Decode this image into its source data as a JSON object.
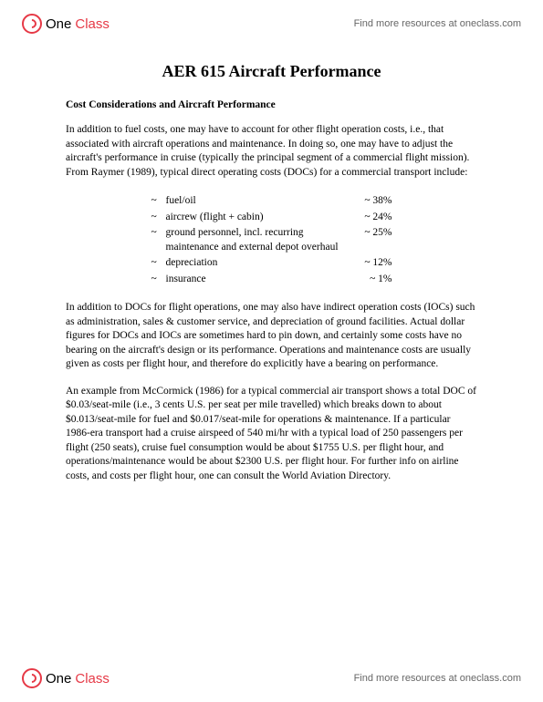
{
  "header": {
    "brand_one": "One",
    "brand_class": "Class",
    "find_more": "Find more resources at oneclass.com"
  },
  "footer": {
    "brand_one": "One",
    "brand_class": "Class",
    "find_more": "Find more resources at oneclass.com"
  },
  "doc": {
    "title": "AER 615 Aircraft Performance",
    "subtitle": "Cost Considerations and Aircraft Performance",
    "para1": "In addition to fuel costs, one may have to account for other flight operation costs, i.e., that associated with aircraft operations and maintenance. In doing so, one may have to adjust the aircraft's performance in cruise (typically the principal segment of a commercial flight mission). From Raymer (1989), typical direct operating costs (DOCs) for a commercial transport include:",
    "costs": [
      {
        "label": "fuel/oil",
        "value": "~ 38%"
      },
      {
        "label": "aircrew (flight + cabin)",
        "value": "~ 24%"
      },
      {
        "label": "ground personnel, incl. recurring maintenance and external depot overhaul",
        "value": "~ 25%"
      },
      {
        "label": "depreciation",
        "value": "~ 12%"
      },
      {
        "label": "insurance",
        "value": "~  1%"
      }
    ],
    "para2": "In addition to DOCs for flight operations, one may also have indirect operation costs (IOCs) such as administration, sales & customer service, and depreciation of ground facilities. Actual dollar figures for DOCs and IOCs are sometimes hard to pin down, and certainly some costs have no bearing on the aircraft's design or its performance. Operations and maintenance costs are usually given as costs per flight hour, and therefore do explicitly have a bearing on performance.",
    "para3": "An example from McCormick (1986) for a typical commercial air transport shows a total DOC of $0.03/seat-mile (i.e., 3 cents U.S. per seat per mile travelled) which breaks down to about $0.013/seat-mile for fuel and $0.017/seat-mile for operations & maintenance. If a particular 1986-era transport had a cruise airspeed of 540 mi/hr with a typical load of 250 passengers per flight (250 seats), cruise fuel consumption would be about $1755 U.S. per flight hour, and operations/maintenance would be about $2300 U.S. per flight hour. For further info on airline costs, and costs per flight hour, one can consult the World Aviation Directory."
  }
}
